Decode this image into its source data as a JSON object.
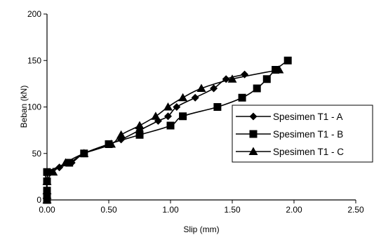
{
  "chart_data": {
    "type": "scatter",
    "title": "",
    "xlabel": "Slip (mm)",
    "ylabel": "Beban (kN)",
    "xlim": [
      0,
      2.5
    ],
    "ylim": [
      0,
      200
    ],
    "xticks": [
      0,
      0.5,
      1.0,
      1.5,
      2.0,
      2.5
    ],
    "xtick_labels": [
      "0.00",
      "0.50",
      "1.00",
      "1.50",
      "2.00",
      "2.50"
    ],
    "yticks": [
      0,
      50,
      100,
      150,
      200
    ],
    "ytick_labels": [
      "0",
      "50",
      "100",
      "150",
      "200"
    ],
    "grid": false,
    "legend_position": "right",
    "series": [
      {
        "name": "Spesimen T1 - A",
        "marker": "diamond",
        "color": "#000000",
        "points": [
          [
            0,
            0
          ],
          [
            0,
            5
          ],
          [
            0,
            10
          ],
          [
            0,
            20
          ],
          [
            0.02,
            30
          ],
          [
            0.1,
            35
          ],
          [
            0.2,
            40
          ],
          [
            0.3,
            50
          ],
          [
            0.5,
            60
          ],
          [
            0.6,
            65
          ],
          [
            0.75,
            75
          ],
          [
            0.9,
            85
          ],
          [
            0.98,
            90
          ],
          [
            1.05,
            100
          ],
          [
            1.2,
            110
          ],
          [
            1.35,
            120
          ],
          [
            1.45,
            130
          ],
          [
            1.6,
            135
          ]
        ]
      },
      {
        "name": "Spesimen T1 - B",
        "marker": "square",
        "color": "#000000",
        "points": [
          [
            0,
            0
          ],
          [
            0,
            5
          ],
          [
            0,
            10
          ],
          [
            0,
            20
          ],
          [
            0,
            30
          ],
          [
            0.18,
            40
          ],
          [
            0.3,
            50
          ],
          [
            0.5,
            60
          ],
          [
            0.75,
            70
          ],
          [
            1.0,
            80
          ],
          [
            1.1,
            90
          ],
          [
            1.38,
            100
          ],
          [
            1.58,
            110
          ],
          [
            1.7,
            120
          ],
          [
            1.78,
            130
          ],
          [
            1.85,
            140
          ],
          [
            1.95,
            150
          ]
        ]
      },
      {
        "name": "Spesimen T1 - C",
        "marker": "triangle",
        "color": "#000000",
        "points": [
          [
            0,
            0
          ],
          [
            0,
            5
          ],
          [
            0,
            10
          ],
          [
            0,
            20
          ],
          [
            0.05,
            30
          ],
          [
            0.15,
            40
          ],
          [
            0.3,
            50
          ],
          [
            0.52,
            60
          ],
          [
            0.6,
            70
          ],
          [
            0.75,
            80
          ],
          [
            0.88,
            90
          ],
          [
            0.98,
            100
          ],
          [
            1.1,
            110
          ],
          [
            1.25,
            120
          ],
          [
            1.5,
            130
          ],
          [
            1.88,
            140
          ]
        ]
      }
    ]
  }
}
